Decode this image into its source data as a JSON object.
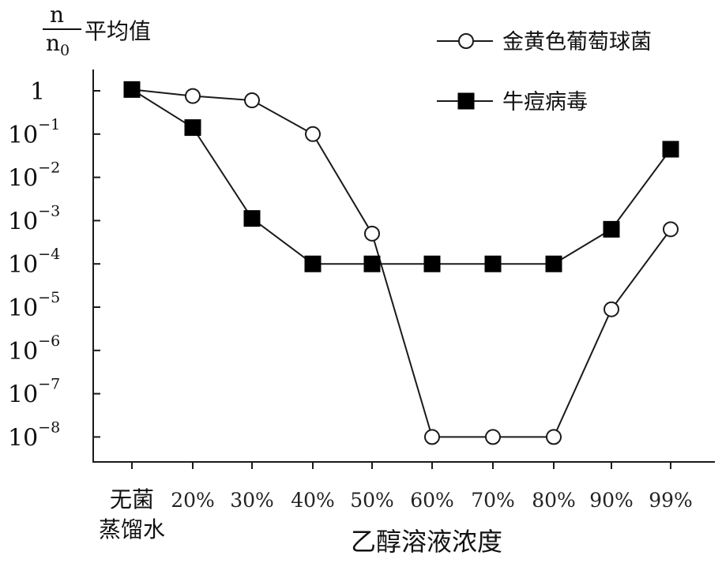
{
  "chart_data": {
    "type": "line",
    "y_scale": "log",
    "ylim_log10": [
      -8.6,
      0.9
    ],
    "ylabel": {
      "numerator": "n",
      "denominator": "n",
      "denominator_sub": "0",
      "suffix": "平均值"
    },
    "xlabel": "乙醇溶液浓度",
    "categories": [
      "无菌\n蒸馏水",
      "20%",
      "30%",
      "40%",
      "50%",
      "60%",
      "70%",
      "80%",
      "90%",
      "99%"
    ],
    "y_ticks": [
      {
        "exp": 0,
        "base": "1",
        "sup": ""
      },
      {
        "exp": -1,
        "base": "10",
        "sup": "−1"
      },
      {
        "exp": -2,
        "base": "10",
        "sup": "−2"
      },
      {
        "exp": -3,
        "base": "10",
        "sup": "−3"
      },
      {
        "exp": -4,
        "base": "10",
        "sup": "−4"
      },
      {
        "exp": -5,
        "base": "10",
        "sup": "−5"
      },
      {
        "exp": -6,
        "base": "10",
        "sup": "−6"
      },
      {
        "exp": -7,
        "base": "10",
        "sup": "−7"
      },
      {
        "exp": -8,
        "base": "10",
        "sup": "−8"
      }
    ],
    "series": [
      {
        "name": "金黄色葡萄球菌",
        "marker": "circle",
        "log10_values": [
          0.03,
          -0.12,
          -0.22,
          -1.0,
          -3.3,
          -8.0,
          -8.0,
          -8.0,
          -5.05,
          -3.2
        ]
      },
      {
        "name": "牛痘病毒",
        "marker": "square",
        "log10_values": [
          0.03,
          -0.85,
          -2.95,
          -4.0,
          -4.0,
          -4.0,
          -4.0,
          -4.0,
          -3.2,
          -1.35
        ]
      }
    ],
    "legend_position": "top-right",
    "grid": false
  }
}
